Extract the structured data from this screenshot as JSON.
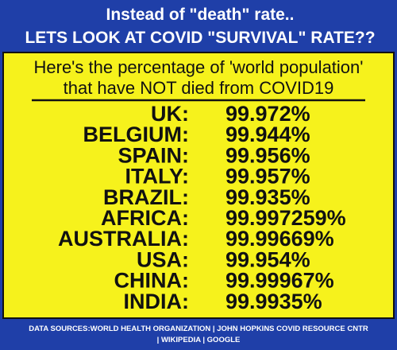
{
  "header": {
    "lines": [
      "Instead of \"death\" rate..",
      "LETS LOOK AT COVID \"SURVIVAL\" RATE??"
    ]
  },
  "subtitle": {
    "lines": [
      "Here's the percentage of 'world population'",
      "that have NOT died from COVID19"
    ]
  },
  "table": {
    "rows": [
      [
        "UK:",
        "99.972%"
      ],
      [
        "BELGIUM:",
        "99.944%"
      ],
      [
        "SPAIN:",
        "99.956%"
      ],
      [
        "ITALY:",
        "99.957%"
      ],
      [
        "BRAZIL:",
        "99.935%"
      ],
      [
        "AFRICA:",
        "99.997259%"
      ],
      [
        "AUSTRALIA:",
        "99.99669%"
      ],
      [
        "USA:",
        "99.954%"
      ],
      [
        "CHINA:",
        "99.99967%"
      ],
      [
        "INDIA:",
        "99.9935%"
      ]
    ]
  },
  "footer": {
    "lines": [
      "DATA SOURCES:WORLD HEALTH ORGANIZATION | JOHN HOPKINS COVID RESOURCE CNTR",
      "| WIKIPEDIA | GOOGLE"
    ]
  }
}
